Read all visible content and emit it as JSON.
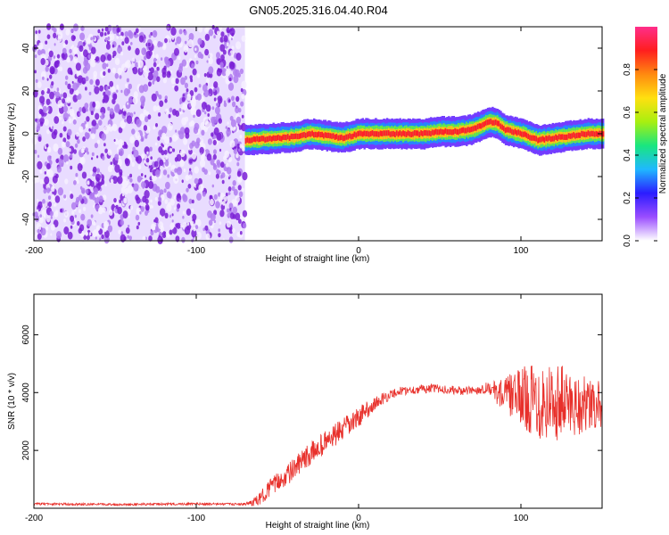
{
  "title": "GN05.2025.316.04.40.R04",
  "colors": {
    "snr_line": "#e8302b",
    "noise_purple": "#7a1fd6",
    "colormap": [
      "#ffffff",
      "#9a4dff",
      "#2b1cff",
      "#1fb8ff",
      "#19e67f",
      "#a8ef10",
      "#ffe010",
      "#ff8a10",
      "#ff1e1e",
      "#ff2e8a"
    ]
  },
  "chart_data": [
    {
      "type": "heatmap",
      "xlabel": "Height of straight line (km)",
      "ylabel": "Frequency (Hz)",
      "xlim": [
        -200,
        150
      ],
      "ylim": [
        -50,
        50
      ],
      "xticks": [
        -200,
        -100,
        0,
        100
      ],
      "yticks": [
        40,
        20,
        0,
        -20,
        -40
      ],
      "noise_region_x": [
        -200,
        -70
      ],
      "ridge": {
        "x": [
          -70,
          -60,
          -50,
          -40,
          -30,
          -20,
          -10,
          0,
          10,
          20,
          30,
          40,
          50,
          60,
          70,
          80,
          85,
          90,
          100,
          110,
          120,
          130,
          140,
          150
        ],
        "freq": [
          -3,
          -2.5,
          -2,
          -1.5,
          0,
          -1,
          -2,
          0,
          0,
          0,
          0,
          0,
          1,
          1,
          2,
          5.5,
          5,
          2,
          0,
          -3,
          -2,
          -1,
          0,
          0
        ]
      },
      "colorbar": {
        "label": "Normalized spectral amplitude",
        "range": [
          0,
          1
        ],
        "ticks": [
          0.0,
          0.2,
          0.4,
          0.6,
          0.8
        ]
      }
    },
    {
      "type": "line",
      "xlabel": "Height of straight line (km)",
      "ylabel": "SNR (10 * v/v)",
      "xlim": [
        -200,
        150
      ],
      "ylim": [
        0,
        7400
      ],
      "xticks": [
        -200,
        -100,
        0,
        100
      ],
      "yticks": [
        6000,
        4000,
        2000
      ],
      "series": [
        {
          "x": [
            -200,
            -150,
            -100,
            -70,
            -62,
            -55,
            -45,
            -35,
            -25,
            -15,
            -5,
            5,
            15,
            25,
            35,
            45,
            55,
            65,
            75,
            80,
            85,
            95,
            105,
            115,
            125,
            135,
            145,
            150
          ],
          "values": [
            150,
            130,
            150,
            140,
            250,
            700,
            1100,
            1600,
            2100,
            2500,
            2900,
            3400,
            3800,
            4050,
            4100,
            4150,
            4100,
            4050,
            4100,
            4200,
            4000,
            3900,
            3800,
            3700,
            3700,
            3600,
            3500,
            3600
          ],
          "noise_amplitude": [
            40,
            40,
            40,
            40,
            200,
            300,
            350,
            400,
            400,
            400,
            400,
            300,
            200,
            150,
            150,
            150,
            150,
            150,
            150,
            200,
            400,
            800,
            1200,
            1500,
            1300,
            1100,
            900,
            800
          ]
        }
      ]
    }
  ]
}
